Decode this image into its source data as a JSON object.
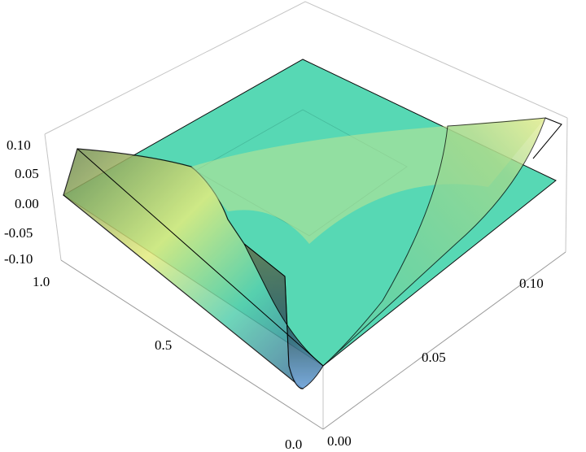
{
  "chart_data": {
    "type": "surface3d",
    "title": "",
    "x_axis": {
      "ticks": [
        "0.0",
        "0.5",
        "1.0"
      ],
      "range": [
        0,
        1
      ]
    },
    "y_axis": {
      "ticks": [
        "0.00",
        "0.05",
        "0.10"
      ],
      "range": [
        0,
        0.12
      ]
    },
    "z_axis": {
      "ticks": [
        "0.10",
        "0.05",
        "0.00",
        "-0.05",
        "-0.10"
      ],
      "range": [
        -0.1,
        0.1
      ]
    },
    "series": [
      {
        "kind": "plane",
        "z": 0
      },
      {
        "kind": "surface",
        "z_min": -0.1,
        "z_max": 0.11
      }
    ],
    "colors": {
      "plane": "#4fd6b0",
      "surface_high": "#e6ec7a",
      "surface_low": "#3a6f9a",
      "box": "#b8b8b8"
    }
  }
}
